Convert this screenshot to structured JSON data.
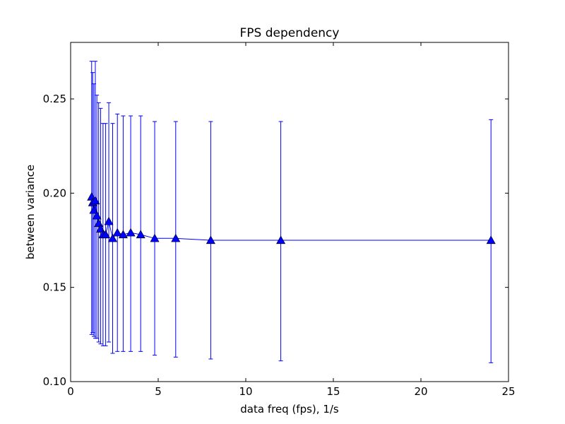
{
  "chart_data": {
    "type": "scatter",
    "title": "FPS dependency",
    "xlabel": "data freq (fps), 1/s",
    "ylabel": "between variance",
    "xlim": [
      0,
      25
    ],
    "ylim": [
      0.1,
      0.28
    ],
    "x_ticks": [
      0,
      5,
      10,
      15,
      20,
      25
    ],
    "x_tick_labels": [
      "0",
      "5",
      "10",
      "15",
      "20",
      "25"
    ],
    "y_ticks": [
      0.1,
      0.15,
      0.2,
      0.25
    ],
    "y_tick_labels": [
      "0.10",
      "0.15",
      "0.20",
      "0.25"
    ],
    "grid": false,
    "legend": "none",
    "marker": "triangle-up",
    "line_color": "#0000ff",
    "marker_color": "#0000ff",
    "errorbar_color": "#0000ff",
    "series": [
      {
        "x": [
          1.2,
          1.26,
          1.33,
          1.41,
          1.5,
          1.6,
          1.71,
          1.85,
          2.0,
          2.18,
          2.4,
          2.67,
          3.0,
          3.43,
          4.0,
          4.8,
          6.0,
          8.0,
          12.0,
          24.0
        ],
        "y": [
          0.198,
          0.195,
          0.191,
          0.196,
          0.188,
          0.184,
          0.181,
          0.178,
          0.178,
          0.185,
          0.176,
          0.179,
          0.178,
          0.179,
          0.178,
          0.176,
          0.176,
          0.175,
          0.175,
          0.175
        ],
        "yerr_upper": [
          0.27,
          0.264,
          0.258,
          0.27,
          0.252,
          0.248,
          0.245,
          0.237,
          0.237,
          0.248,
          0.237,
          0.242,
          0.241,
          0.241,
          0.241,
          0.238,
          0.238,
          0.238,
          0.238,
          0.239
        ],
        "yerr_lower": [
          0.125,
          0.126,
          0.124,
          0.123,
          0.123,
          0.121,
          0.12,
          0.119,
          0.119,
          0.121,
          0.115,
          0.116,
          0.116,
          0.116,
          0.116,
          0.114,
          0.113,
          0.112,
          0.111,
          0.11
        ]
      }
    ]
  }
}
